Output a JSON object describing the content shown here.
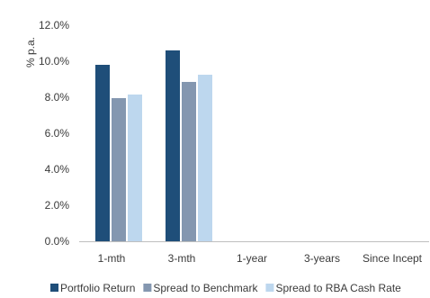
{
  "chart_data": {
    "type": "bar",
    "ylabel": "% p.a.",
    "categories": [
      "1-mth",
      "3-mth",
      "1-year",
      "3-years",
      "Since Incept"
    ],
    "series": [
      {
        "name": "Portfolio Return",
        "color": "#1f4e79",
        "values": [
          9.8,
          10.6,
          null,
          null,
          null
        ]
      },
      {
        "name": "Spread to Benchmark",
        "color": "#8497b0",
        "values": [
          7.95,
          8.85,
          null,
          null,
          null
        ]
      },
      {
        "name": "Spread to RBA Cash Rate",
        "color": "#bdd7ee",
        "values": [
          8.15,
          9.25,
          null,
          null,
          null
        ]
      }
    ],
    "ylim": [
      0,
      12
    ],
    "yticks": [
      0,
      2,
      4,
      6,
      8,
      10,
      12
    ],
    "ytick_labels": [
      "0.0%",
      "2.0%",
      "4.0%",
      "6.0%",
      "8.0%",
      "10.0%",
      "12.0%"
    ],
    "grid": false,
    "legend_position": "bottom"
  }
}
